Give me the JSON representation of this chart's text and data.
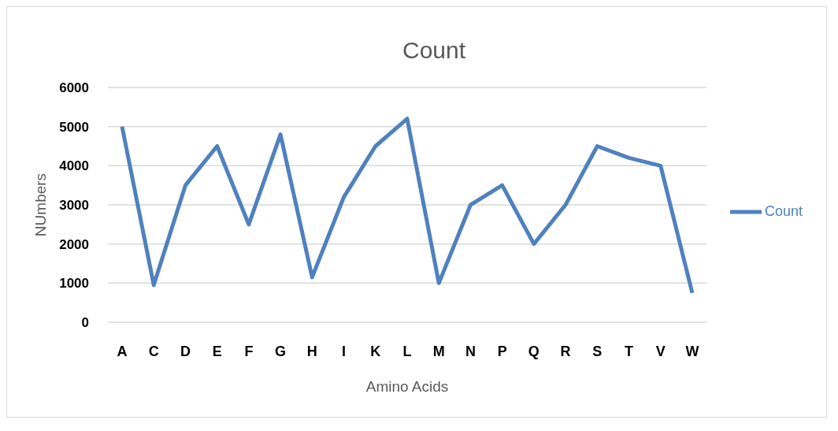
{
  "chart_data": {
    "type": "line",
    "title": "Count",
    "xlabel": "Amino Acids",
    "ylabel": "NUmbers",
    "categories": [
      "A",
      "C",
      "D",
      "E",
      "F",
      "G",
      "H",
      "I",
      "K",
      "L",
      "M",
      "N",
      "P",
      "Q",
      "R",
      "S",
      "T",
      "V",
      "W"
    ],
    "series": [
      {
        "name": "Count",
        "color": "#4f81bd",
        "values": [
          5000,
          950,
          3500,
          4500,
          2500,
          4800,
          1150,
          3200,
          4500,
          5200,
          1000,
          3000,
          3500,
          2000,
          3000,
          4500,
          4200,
          4000,
          750
        ]
      }
    ],
    "ylim": [
      0,
      6000
    ],
    "yticks": [
      0,
      1000,
      2000,
      3000,
      4000,
      5000,
      6000
    ],
    "grid": "y",
    "legend": "right",
    "marker": "none",
    "line_style": "solid"
  }
}
